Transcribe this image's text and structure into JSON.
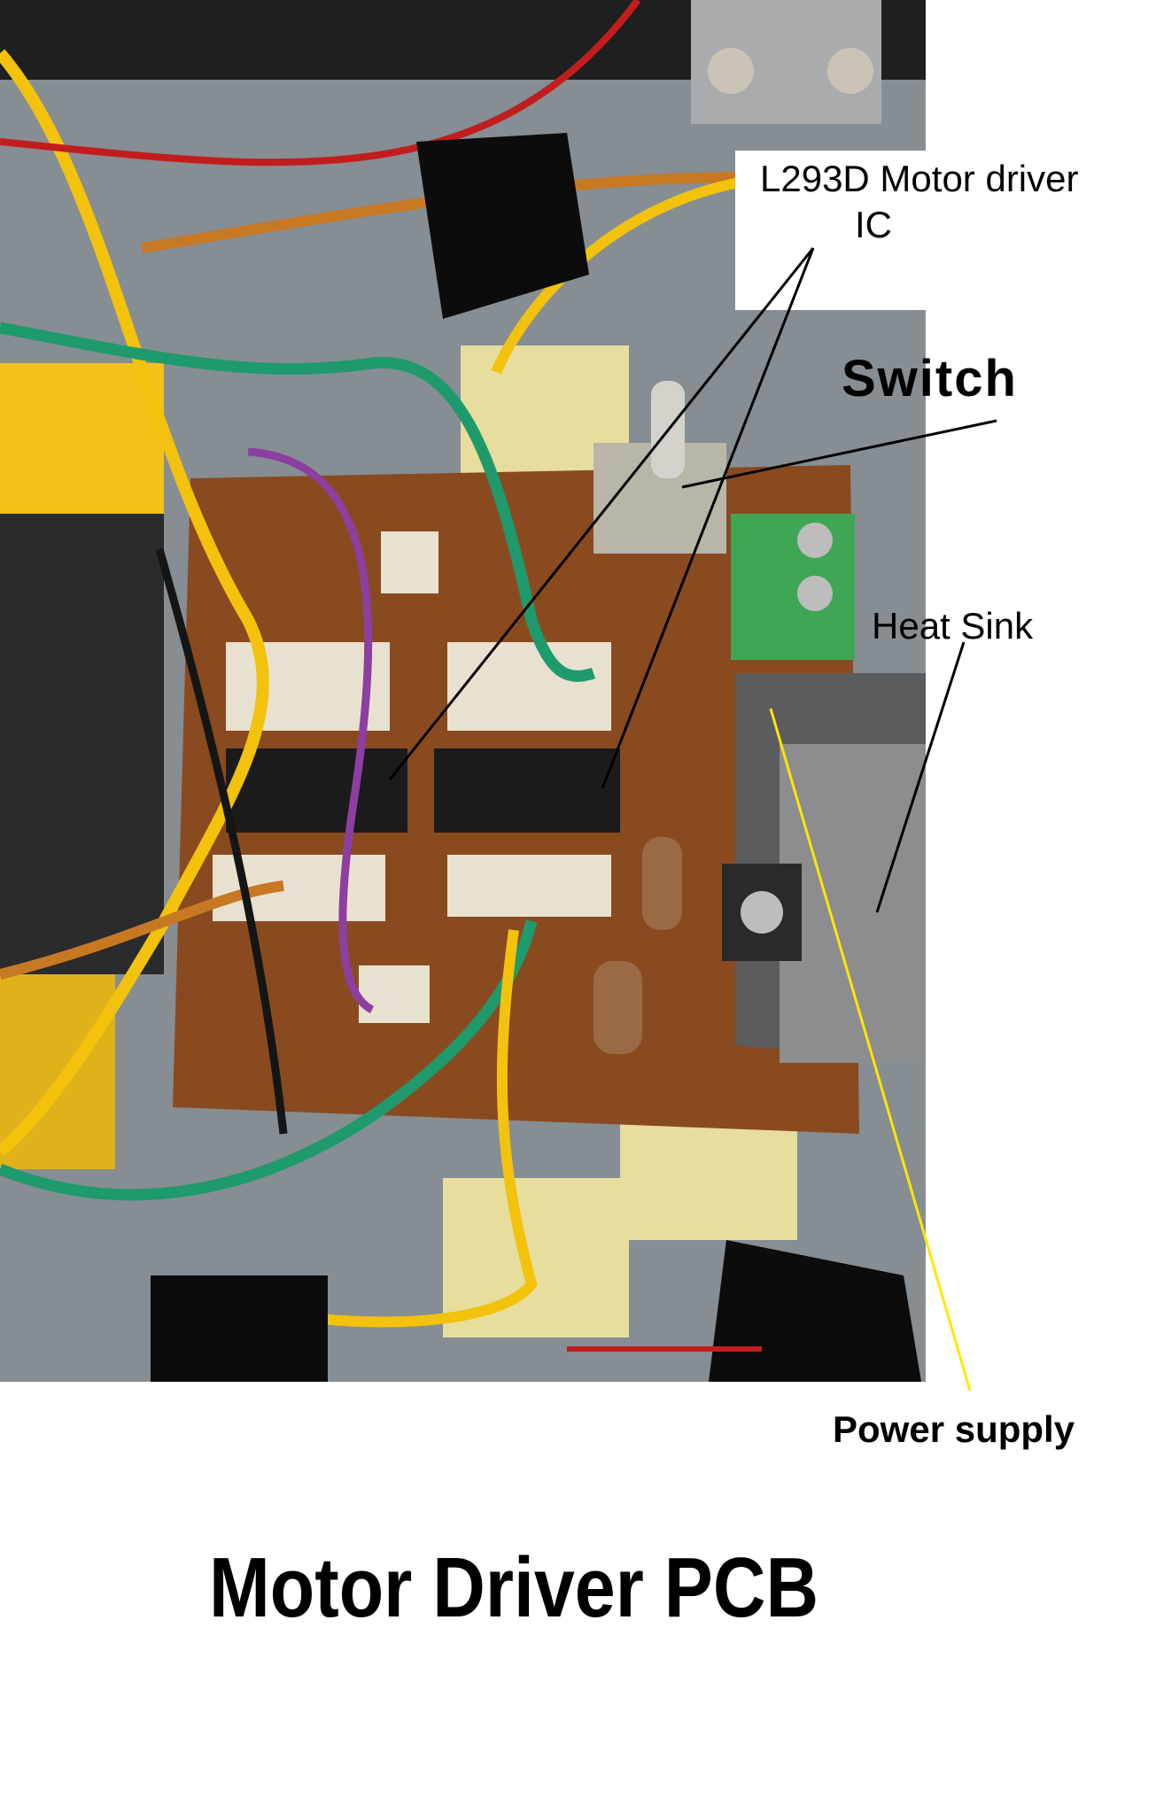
{
  "labels": {
    "ic_line1": "L293D Motor driver",
    "ic_line2": "IC",
    "switch": "Switch",
    "heat_sink": "Heat Sink",
    "power_supply": "Power supply",
    "title": "Motor Driver PCB"
  },
  "colors": {
    "background": "#ffffff",
    "pcb": "#8a4a1f",
    "label_box": "#ffffff",
    "power_callout": "#ffe600",
    "text": "#000000"
  }
}
